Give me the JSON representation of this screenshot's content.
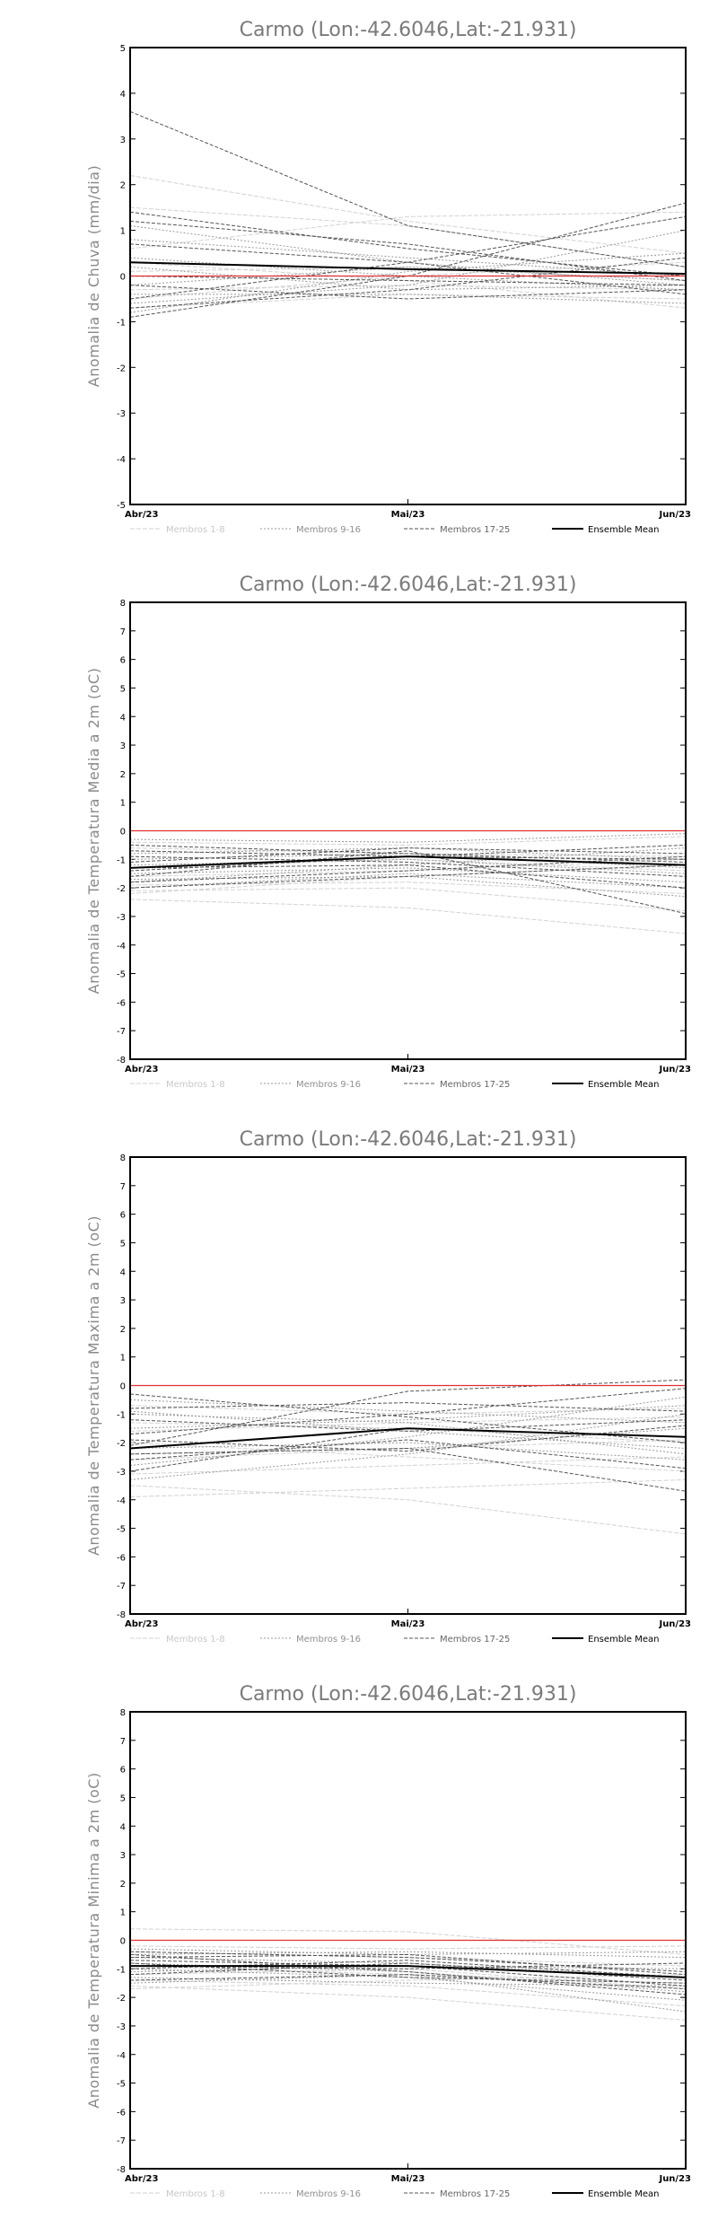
{
  "legend": [
    {
      "label": "Membros 1-8",
      "color": "#d2d2d2",
      "dash": "5,2",
      "width": 1,
      "text_color": "#c8c8c8"
    },
    {
      "label": "Membros 9-16",
      "color": "#9a9a9a",
      "dash": "2,2",
      "width": 1,
      "text_color": "#8f8f8f"
    },
    {
      "label": "Membros 17-25",
      "color": "#555555",
      "dash": "4,2",
      "width": 1,
      "text_color": "#666666"
    },
    {
      "label": "Ensemble Mean",
      "color": "#000000",
      "dash": "",
      "width": 2,
      "text_color": "#000000"
    }
  ],
  "chart_data": [
    {
      "type": "line",
      "title": "Carmo (Lon:-42.6046,Lat:-21.931)",
      "ylabel": "Anomalia de Chuva (mm/dia)",
      "x": [
        "Abr/23",
        "Mai/23",
        "Jun/23"
      ],
      "ylim": [
        -5,
        5
      ],
      "yticks": [
        -5,
        -4,
        -3,
        -2,
        -1,
        0,
        1,
        2,
        3,
        4,
        5
      ],
      "reference_line": {
        "value": 0,
        "color": "#e03030"
      },
      "series": [
        {
          "group": 0,
          "values": [
            2.2,
            1.2,
            0.5
          ]
        },
        {
          "group": 0,
          "values": [
            1.5,
            1.1,
            0.2
          ]
        },
        {
          "group": 0,
          "values": [
            0.6,
            1.3,
            1.4
          ]
        },
        {
          "group": 0,
          "values": [
            -0.3,
            -0.2,
            -0.3
          ]
        },
        {
          "group": 0,
          "values": [
            -0.5,
            0.0,
            0.3
          ]
        },
        {
          "group": 0,
          "values": [
            0.1,
            0.2,
            -0.1
          ]
        },
        {
          "group": 0,
          "values": [
            -0.7,
            -0.4,
            -0.5
          ]
        },
        {
          "group": 0,
          "values": [
            0.3,
            -0.1,
            -0.7
          ]
        },
        {
          "group": 1,
          "values": [
            1.1,
            0.3,
            -0.2
          ]
        },
        {
          "group": 1,
          "values": [
            -0.6,
            -0.2,
            1.0
          ]
        },
        {
          "group": 1,
          "values": [
            0.8,
            0.4,
            0.0
          ]
        },
        {
          "group": 1,
          "values": [
            -0.2,
            0.2,
            -0.1
          ]
        },
        {
          "group": 1,
          "values": [
            -0.8,
            0.1,
            0.5
          ]
        },
        {
          "group": 1,
          "values": [
            0.4,
            0.0,
            -0.3
          ]
        },
        {
          "group": 1,
          "values": [
            0.2,
            -0.3,
            -0.2
          ]
        },
        {
          "group": 1,
          "values": [
            -0.4,
            -0.4,
            -0.6
          ]
        },
        {
          "group": 2,
          "values": [
            3.6,
            1.1,
            0.2
          ]
        },
        {
          "group": 2,
          "values": [
            1.4,
            0.6,
            0.0
          ]
        },
        {
          "group": 2,
          "values": [
            1.2,
            0.7,
            -0.1
          ]
        },
        {
          "group": 2,
          "values": [
            -0.9,
            0.0,
            1.6
          ]
        },
        {
          "group": 2,
          "values": [
            -0.5,
            0.3,
            1.3
          ]
        },
        {
          "group": 2,
          "values": [
            0.7,
            0.3,
            -0.4
          ]
        },
        {
          "group": 2,
          "values": [
            -0.7,
            -0.3,
            0.4
          ]
        },
        {
          "group": 2,
          "values": [
            -0.2,
            -0.5,
            -0.3
          ]
        },
        {
          "group": 2,
          "values": [
            0.0,
            -0.1,
            -0.2
          ]
        },
        {
          "group": 3,
          "values": [
            0.3,
            0.15,
            0.05
          ]
        }
      ]
    },
    {
      "type": "line",
      "title": "Carmo (Lon:-42.6046,Lat:-21.931)",
      "ylabel": "Anomalia de Temperatura Media a 2m (oC)",
      "x": [
        "Abr/23",
        "Mai/23",
        "Jun/23"
      ],
      "ylim": [
        -8,
        8
      ],
      "yticks": [
        -8,
        -7,
        -6,
        -5,
        -4,
        -3,
        -2,
        -1,
        0,
        1,
        2,
        3,
        4,
        5,
        6,
        7,
        8
      ],
      "reference_line": {
        "value": 0,
        "color": "#e03030"
      },
      "series": [
        {
          "group": 0,
          "values": [
            -2.2,
            -1.6,
            -1.2
          ]
        },
        {
          "group": 0,
          "values": [
            -2.4,
            -2.7,
            -3.6
          ]
        },
        {
          "group": 0,
          "values": [
            -1.9,
            -1.8,
            -2.2
          ]
        },
        {
          "group": 0,
          "values": [
            -1.3,
            -1.0,
            -1.4
          ]
        },
        {
          "group": 0,
          "values": [
            -0.6,
            -0.8,
            -0.9
          ]
        },
        {
          "group": 0,
          "values": [
            -1.6,
            -1.4,
            -1.0
          ]
        },
        {
          "group": 0,
          "values": [
            -2.1,
            -2.0,
            -2.8
          ]
        },
        {
          "group": 0,
          "values": [
            -0.4,
            -0.5,
            -0.2
          ]
        },
        {
          "group": 1,
          "values": [
            -1.8,
            -1.2,
            -0.6
          ]
        },
        {
          "group": 1,
          "values": [
            -1.0,
            -0.8,
            -1.3
          ]
        },
        {
          "group": 1,
          "values": [
            -2.0,
            -1.5,
            -2.0
          ]
        },
        {
          "group": 1,
          "values": [
            -1.5,
            -1.3,
            -1.8
          ]
        },
        {
          "group": 1,
          "values": [
            -0.8,
            -0.6,
            -1.0
          ]
        },
        {
          "group": 1,
          "values": [
            -1.2,
            -1.0,
            -1.5
          ]
        },
        {
          "group": 1,
          "values": [
            -1.7,
            -1.6,
            -2.3
          ]
        },
        {
          "group": 1,
          "values": [
            -0.3,
            -0.4,
            -0.1
          ]
        },
        {
          "group": 2,
          "values": [
            -1.6,
            -0.7,
            -2.9
          ]
        },
        {
          "group": 2,
          "values": [
            -1.4,
            -0.9,
            -1.0
          ]
        },
        {
          "group": 2,
          "values": [
            -0.9,
            -1.1,
            -1.6
          ]
        },
        {
          "group": 2,
          "values": [
            -1.1,
            -0.6,
            -0.8
          ]
        },
        {
          "group": 2,
          "values": [
            -2.0,
            -1.6,
            -1.2
          ]
        },
        {
          "group": 2,
          "values": [
            -0.7,
            -0.9,
            -0.5
          ]
        },
        {
          "group": 2,
          "values": [
            -1.3,
            -1.2,
            -2.0
          ]
        },
        {
          "group": 2,
          "values": [
            -0.5,
            -0.8,
            -1.1
          ]
        },
        {
          "group": 2,
          "values": [
            -1.8,
            -1.4,
            -0.9
          ]
        },
        {
          "group": 3,
          "values": [
            -1.3,
            -0.9,
            -1.2
          ]
        }
      ]
    },
    {
      "type": "line",
      "title": "Carmo (Lon:-42.6046,Lat:-21.931)",
      "ylabel": "Anomalia de Temperatura Maxima a 2m (oC)",
      "x": [
        "Abr/23",
        "Mai/23",
        "Jun/23"
      ],
      "ylim": [
        -8,
        8
      ],
      "yticks": [
        -8,
        -7,
        -6,
        -5,
        -4,
        -3,
        -2,
        -1,
        0,
        1,
        2,
        3,
        4,
        5,
        6,
        7,
        8
      ],
      "reference_line": {
        "value": 0,
        "color": "#e03030"
      },
      "series": [
        {
          "group": 0,
          "values": [
            -3.5,
            -4.0,
            -5.2
          ]
        },
        {
          "group": 0,
          "values": [
            -3.9,
            -3.6,
            -3.3
          ]
        },
        {
          "group": 0,
          "values": [
            -2.6,
            -2.2,
            -1.9
          ]
        },
        {
          "group": 0,
          "values": [
            -1.3,
            -1.5,
            -2.0
          ]
        },
        {
          "group": 0,
          "values": [
            -0.7,
            -1.0,
            -0.8
          ]
        },
        {
          "group": 0,
          "values": [
            -2.0,
            -2.5,
            -3.0
          ]
        },
        {
          "group": 0,
          "values": [
            -1.6,
            -1.3,
            -1.1
          ]
        },
        {
          "group": 0,
          "values": [
            -3.1,
            -2.8,
            -2.5
          ]
        },
        {
          "group": 1,
          "values": [
            -3.3,
            -2.4,
            -1.0
          ]
        },
        {
          "group": 1,
          "values": [
            -2.8,
            -1.8,
            -0.4
          ]
        },
        {
          "group": 1,
          "values": [
            -1.0,
            -1.3,
            -2.4
          ]
        },
        {
          "group": 1,
          "values": [
            -2.2,
            -2.0,
            -2.6
          ]
        },
        {
          "group": 1,
          "values": [
            -0.9,
            -1.6,
            -2.2
          ]
        },
        {
          "group": 1,
          "values": [
            -1.5,
            -1.2,
            -0.7
          ]
        },
        {
          "group": 1,
          "values": [
            -2.4,
            -2.2,
            -1.5
          ]
        },
        {
          "group": 1,
          "values": [
            -0.5,
            -0.9,
            -1.3
          ]
        },
        {
          "group": 2,
          "values": [
            -2.1,
            -0.2,
            0.2
          ]
        },
        {
          "group": 2,
          "values": [
            -1.7,
            -1.0,
            -0.1
          ]
        },
        {
          "group": 2,
          "values": [
            -2.4,
            -2.2,
            -3.7
          ]
        },
        {
          "group": 2,
          "values": [
            -0.3,
            -1.1,
            -2.0
          ]
        },
        {
          "group": 2,
          "values": [
            -3.0,
            -1.5,
            -1.8
          ]
        },
        {
          "group": 2,
          "values": [
            -1.2,
            -1.6,
            -1.2
          ]
        },
        {
          "group": 2,
          "values": [
            -2.6,
            -1.9,
            -2.9
          ]
        },
        {
          "group": 2,
          "values": [
            -1.9,
            -2.3,
            -1.4
          ]
        },
        {
          "group": 2,
          "values": [
            -0.8,
            -0.6,
            -0.9
          ]
        },
        {
          "group": 3,
          "values": [
            -2.2,
            -1.5,
            -1.8
          ]
        }
      ]
    },
    {
      "type": "line",
      "title": "Carmo (Lon:-42.6046,Lat:-21.931)",
      "ylabel": "Anomalia de Temperatura Minima a 2m (oC)",
      "x": [
        "Abr/23",
        "Mai/23",
        "Jun/23"
      ],
      "ylim": [
        -8,
        8
      ],
      "yticks": [
        -8,
        -7,
        -6,
        -5,
        -4,
        -3,
        -2,
        -1,
        0,
        1,
        2,
        3,
        4,
        5,
        6,
        7,
        8
      ],
      "reference_line": {
        "value": 0,
        "color": "#e03030"
      },
      "series": [
        {
          "group": 0,
          "values": [
            0.4,
            0.3,
            -0.5
          ]
        },
        {
          "group": 0,
          "values": [
            -1.6,
            -2.0,
            -2.8
          ]
        },
        {
          "group": 0,
          "values": [
            -1.2,
            -1.0,
            -1.7
          ]
        },
        {
          "group": 0,
          "values": [
            -0.4,
            -0.6,
            -0.9
          ]
        },
        {
          "group": 0,
          "values": [
            -1.4,
            -1.6,
            -2.3
          ]
        },
        {
          "group": 0,
          "values": [
            -0.9,
            -1.2,
            -1.5
          ]
        },
        {
          "group": 0,
          "values": [
            -1.7,
            -1.4,
            -1.2
          ]
        },
        {
          "group": 0,
          "values": [
            -0.2,
            -0.3,
            -0.2
          ]
        },
        {
          "group": 1,
          "values": [
            -1.5,
            -1.2,
            -2.5
          ]
        },
        {
          "group": 1,
          "values": [
            -0.6,
            -0.8,
            -1.3
          ]
        },
        {
          "group": 1,
          "values": [
            -1.1,
            -0.9,
            -1.0
          ]
        },
        {
          "group": 1,
          "values": [
            -0.8,
            -1.1,
            -1.8
          ]
        },
        {
          "group": 1,
          "values": [
            -1.3,
            -1.5,
            -1.6
          ]
        },
        {
          "group": 1,
          "values": [
            -0.5,
            -0.4,
            -0.6
          ]
        },
        {
          "group": 1,
          "values": [
            -1.0,
            -1.3,
            -2.1
          ]
        },
        {
          "group": 1,
          "values": [
            -0.3,
            -0.5,
            -0.4
          ]
        },
        {
          "group": 2,
          "values": [
            -0.7,
            -0.9,
            -1.6
          ]
        },
        {
          "group": 2,
          "values": [
            -1.0,
            -0.7,
            -1.3
          ]
        },
        {
          "group": 2,
          "values": [
            -0.5,
            -1.1,
            -1.9
          ]
        },
        {
          "group": 2,
          "values": [
            -1.2,
            -0.8,
            -1.4
          ]
        },
        {
          "group": 2,
          "values": [
            -0.4,
            -0.6,
            -1.1
          ]
        },
        {
          "group": 2,
          "values": [
            -0.9,
            -1.0,
            -0.8
          ]
        },
        {
          "group": 2,
          "values": [
            -0.6,
            -0.5,
            -1.2
          ]
        },
        {
          "group": 2,
          "values": [
            -1.4,
            -1.2,
            -1.7
          ]
        },
        {
          "group": 2,
          "values": [
            -0.8,
            -1.3,
            -1.5
          ]
        },
        {
          "group": 3,
          "values": [
            -0.9,
            -0.9,
            -1.3
          ]
        }
      ]
    }
  ]
}
